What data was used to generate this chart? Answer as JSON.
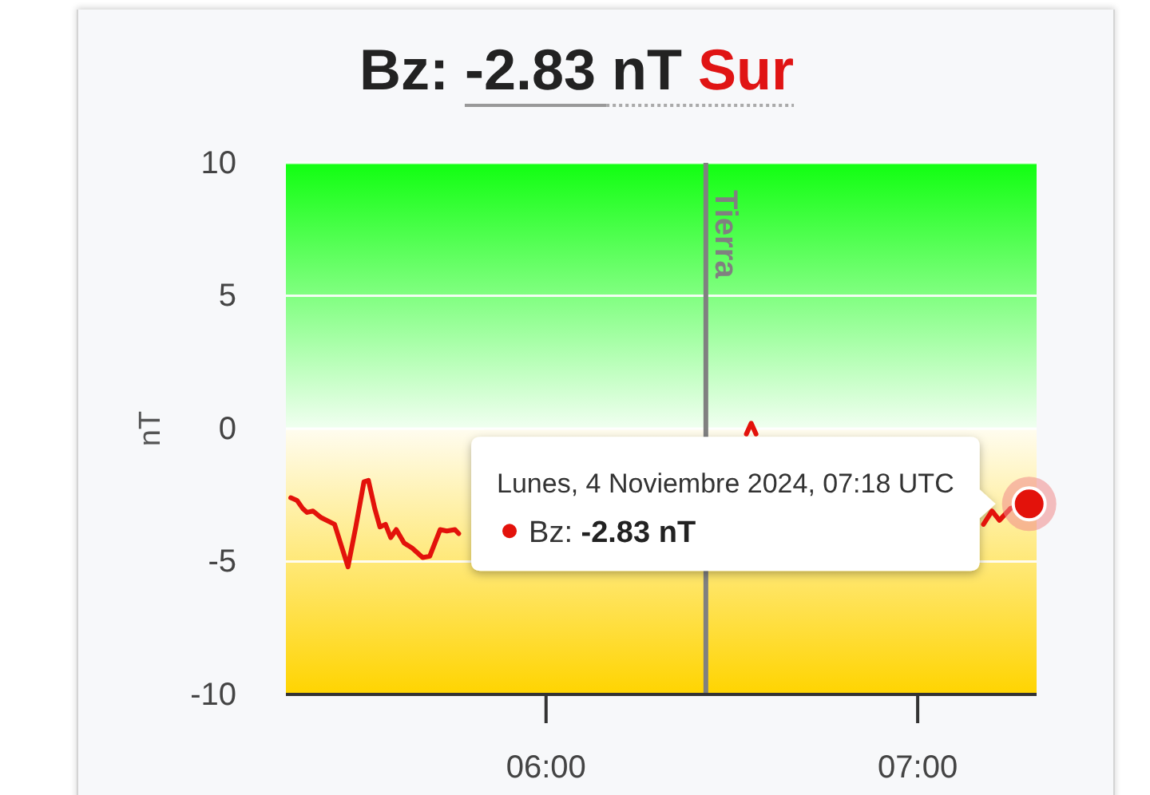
{
  "chart_data": {
    "type": "line",
    "title": "Bz: -2.83 nT Sur",
    "ylabel": "nT",
    "x": [
      5.313,
      5.33,
      5.345,
      5.357,
      5.373,
      5.395,
      5.431,
      5.467,
      5.488,
      5.51,
      5.522,
      5.539,
      5.553,
      5.568,
      5.582,
      5.597,
      5.618,
      5.64,
      5.668,
      5.687,
      5.715,
      5.733,
      5.755,
      5.765,
      6.1,
      6.539,
      6.552,
      6.565,
      6.9,
      7.177,
      7.2,
      7.22,
      7.25,
      7.275,
      7.3
    ],
    "series": [
      {
        "color": "#e3120b",
        "values": [
          -2.6,
          -2.7,
          -3.0,
          -3.15,
          -3.1,
          -3.35,
          -3.6,
          -5.2,
          -3.7,
          -2.0,
          -1.95,
          -3.0,
          -3.7,
          -3.6,
          -4.1,
          -3.8,
          -4.3,
          -4.5,
          -4.85,
          -4.8,
          -3.8,
          -3.85,
          -3.8,
          -3.95,
          null,
          -0.2,
          0.2,
          -0.2,
          null,
          -3.6,
          -3.1,
          -3.45,
          -3.0,
          -2.9,
          -2.83
        ]
      }
    ],
    "xlim": [
      5.3,
      7.32
    ],
    "xticks": [
      {
        "value": 6,
        "label": "06:00"
      },
      {
        "value": 7,
        "label": "07:00"
      }
    ],
    "ylim": [
      -10,
      10
    ],
    "yticks": [
      -10,
      -5,
      0,
      5,
      10
    ],
    "grid": "y",
    "ref_lines": [
      {
        "axis": "x",
        "value": 6.43,
        "label": "Tierra",
        "color": "#808080"
      }
    ],
    "bands": [
      {
        "axis": "y",
        "from": 0,
        "to": 10,
        "color": "#11ff11"
      },
      {
        "axis": "y",
        "from": -10,
        "to": 0,
        "color": "#ffd400"
      }
    ],
    "annotations": [
      {
        "text": "Lunes, 4 Noviembre 2024, 07:18 UTC",
        "x": 7.3,
        "y": -2.83
      },
      "Bz: -2.83 nT"
    ]
  }
}
